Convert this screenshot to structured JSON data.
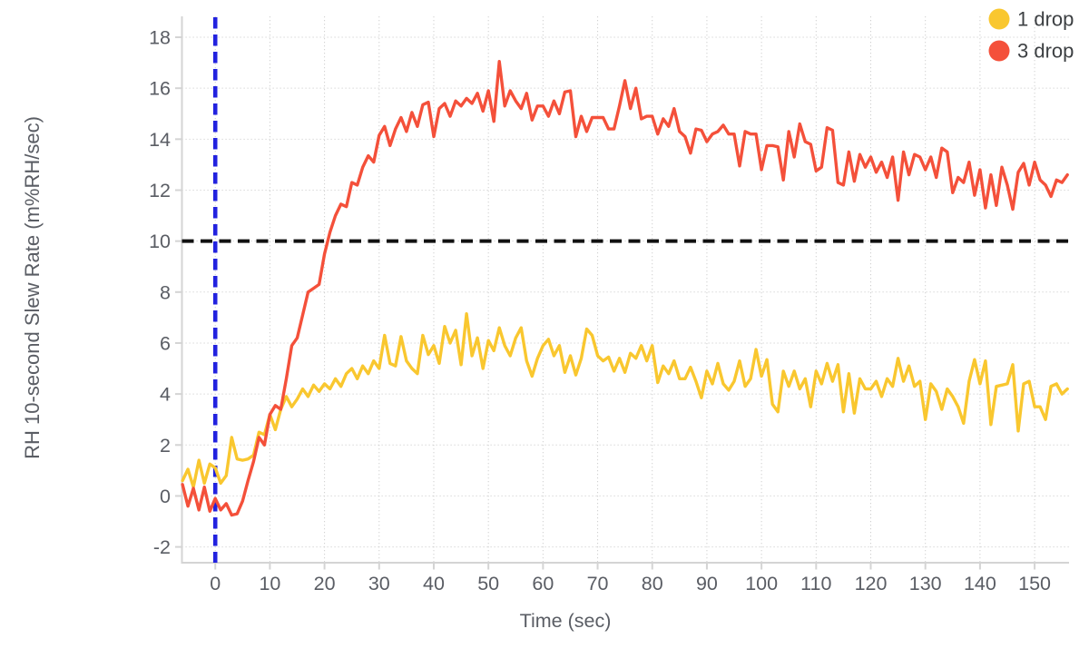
{
  "chart_data": {
    "type": "line",
    "xlabel": "Time (sec)",
    "ylabel": "RH 10-second Slew Rate (m%RH/sec)",
    "xticks": [
      0,
      10,
      20,
      30,
      40,
      50,
      60,
      70,
      80,
      90,
      100,
      110,
      120,
      130,
      140,
      150
    ],
    "yticks": [
      -2,
      0,
      2,
      4,
      6,
      8,
      10,
      12,
      14,
      16,
      18
    ],
    "xlim": [
      -6.1,
      156.3
    ],
    "ylim": [
      -2.62,
      18.82
    ],
    "grid": "dotted",
    "legend_position": "top-right",
    "reference_lines": [
      {
        "axis": "x",
        "value": 0,
        "style": "dashed",
        "color": "#2222DF"
      },
      {
        "axis": "y",
        "value": 10,
        "style": "dashed",
        "color": "#111111"
      }
    ],
    "x": [
      -6,
      -5,
      -4,
      -3,
      -2,
      -1,
      0,
      1,
      2,
      3,
      4,
      5,
      6,
      7,
      8,
      9,
      10,
      11,
      12,
      13,
      14,
      15,
      16,
      17,
      18,
      19,
      20,
      21,
      22,
      23,
      24,
      25,
      26,
      27,
      28,
      29,
      30,
      31,
      32,
      33,
      34,
      35,
      36,
      37,
      38,
      39,
      40,
      41,
      42,
      43,
      44,
      45,
      46,
      47,
      48,
      49,
      50,
      51,
      52,
      53,
      54,
      55,
      56,
      57,
      58,
      59,
      60,
      61,
      62,
      63,
      64,
      65,
      66,
      67,
      68,
      69,
      70,
      71,
      72,
      73,
      74,
      75,
      76,
      77,
      78,
      79,
      80,
      81,
      82,
      83,
      84,
      85,
      86,
      87,
      88,
      89,
      90,
      91,
      92,
      93,
      94,
      95,
      96,
      97,
      98,
      99,
      100,
      101,
      102,
      103,
      104,
      105,
      106,
      107,
      108,
      109,
      110,
      111,
      112,
      113,
      114,
      115,
      116,
      117,
      118,
      119,
      120,
      121,
      122,
      123,
      124,
      125,
      126,
      127,
      128,
      129,
      130,
      131,
      132,
      133,
      134,
      135,
      136,
      137,
      138,
      139,
      140,
      141,
      142,
      143,
      144,
      145,
      146,
      147,
      148,
      149,
      150,
      151,
      152,
      153,
      154,
      155,
      156
    ],
    "series": [
      {
        "name": "1 drop",
        "color": "#F9C72F",
        "values": [
          0.6,
          1.05,
          0.35,
          1.4,
          0.5,
          1.25,
          1.1,
          0.5,
          0.8,
          2.3,
          1.45,
          1.4,
          1.45,
          1.6,
          2.5,
          2.4,
          3.2,
          2.6,
          3.4,
          3.9,
          3.5,
          3.8,
          4.2,
          3.9,
          4.35,
          4.1,
          4.4,
          4.2,
          4.6,
          4.3,
          4.8,
          5.0,
          4.6,
          5.1,
          4.8,
          5.3,
          5.0,
          6.3,
          5.2,
          5.1,
          6.25,
          5.3,
          5.0,
          4.8,
          6.3,
          5.55,
          5.9,
          5.2,
          6.65,
          6.0,
          6.5,
          5.15,
          7.15,
          5.5,
          6.2,
          5.0,
          6.1,
          5.7,
          6.6,
          5.9,
          5.5,
          6.2,
          6.6,
          5.3,
          4.7,
          5.4,
          5.9,
          6.15,
          5.5,
          5.9,
          4.85,
          5.5,
          4.75,
          5.4,
          6.55,
          6.3,
          5.5,
          5.3,
          5.45,
          4.9,
          5.4,
          4.85,
          5.6,
          5.4,
          5.9,
          5.3,
          5.9,
          4.45,
          5.1,
          4.8,
          5.3,
          4.6,
          4.6,
          5.05,
          4.5,
          3.85,
          4.9,
          4.4,
          5.2,
          4.4,
          4.15,
          4.5,
          5.3,
          4.3,
          4.6,
          5.75,
          4.7,
          5.35,
          3.6,
          3.3,
          4.9,
          4.3,
          4.9,
          4.2,
          4.6,
          3.5,
          4.9,
          4.4,
          5.2,
          4.5,
          5.15,
          3.3,
          4.8,
          3.25,
          4.6,
          4.2,
          4.2,
          4.5,
          3.9,
          4.6,
          4.3,
          5.4,
          4.5,
          5.1,
          4.3,
          4.5,
          3.0,
          4.4,
          4.1,
          3.4,
          4.2,
          3.9,
          3.5,
          2.85,
          4.5,
          5.35,
          4.4,
          5.3,
          2.8,
          4.3,
          4.35,
          4.4,
          5.15,
          2.55,
          4.4,
          4.5,
          3.5,
          3.5,
          3.0,
          4.3,
          4.4,
          4.0,
          4.2
        ]
      },
      {
        "name": "3 drop",
        "color": "#F4503A",
        "values": [
          0.45,
          -0.4,
          0.3,
          -0.55,
          0.35,
          -0.6,
          -0.1,
          -0.55,
          -0.3,
          -0.75,
          -0.7,
          -0.2,
          0.6,
          1.35,
          2.3,
          2.0,
          3.2,
          3.55,
          3.4,
          4.6,
          5.9,
          6.2,
          7.1,
          8.0,
          8.15,
          8.3,
          9.5,
          10.35,
          11.0,
          11.45,
          11.35,
          12.3,
          12.2,
          12.9,
          13.35,
          13.1,
          14.15,
          14.5,
          13.75,
          14.4,
          14.85,
          14.3,
          15.05,
          14.5,
          15.35,
          15.45,
          14.1,
          15.2,
          15.4,
          14.9,
          15.5,
          15.3,
          15.6,
          15.4,
          15.8,
          15.1,
          15.9,
          14.7,
          17.05,
          15.3,
          15.9,
          15.5,
          15.2,
          15.8,
          14.75,
          15.3,
          15.3,
          14.9,
          15.5,
          15.0,
          15.85,
          15.9,
          14.1,
          14.9,
          14.3,
          14.85,
          14.85,
          14.85,
          14.4,
          14.4,
          15.3,
          16.3,
          15.2,
          16.0,
          14.8,
          14.9,
          14.9,
          14.2,
          14.8,
          14.5,
          15.2,
          14.3,
          14.1,
          13.45,
          14.4,
          14.35,
          13.9,
          14.2,
          14.3,
          14.55,
          14.2,
          14.2,
          12.95,
          14.3,
          14.2,
          14.2,
          12.8,
          13.75,
          13.75,
          13.7,
          12.4,
          14.3,
          13.3,
          14.6,
          13.9,
          13.8,
          12.75,
          12.9,
          14.45,
          14.35,
          12.3,
          12.2,
          13.5,
          12.35,
          13.4,
          12.9,
          13.3,
          12.7,
          13.1,
          12.5,
          13.3,
          11.6,
          13.5,
          12.6,
          13.4,
          13.3,
          12.8,
          13.3,
          12.5,
          13.65,
          13.5,
          11.9,
          12.5,
          12.3,
          13.1,
          11.8,
          12.8,
          11.3,
          12.6,
          11.4,
          12.9,
          12.2,
          11.25,
          12.7,
          13.05,
          12.2,
          13.1,
          12.4,
          12.2,
          11.75,
          12.4,
          12.3,
          12.6
        ]
      }
    ],
    "styles": {
      "grid_color": "#cfcfcf",
      "axis_color": "#d4d4d4",
      "tick_label_color": "#5a5d64",
      "axis_title_color": "#5a5d64",
      "legend_text_color": "#3d4043",
      "background": "#ffffff"
    }
  }
}
